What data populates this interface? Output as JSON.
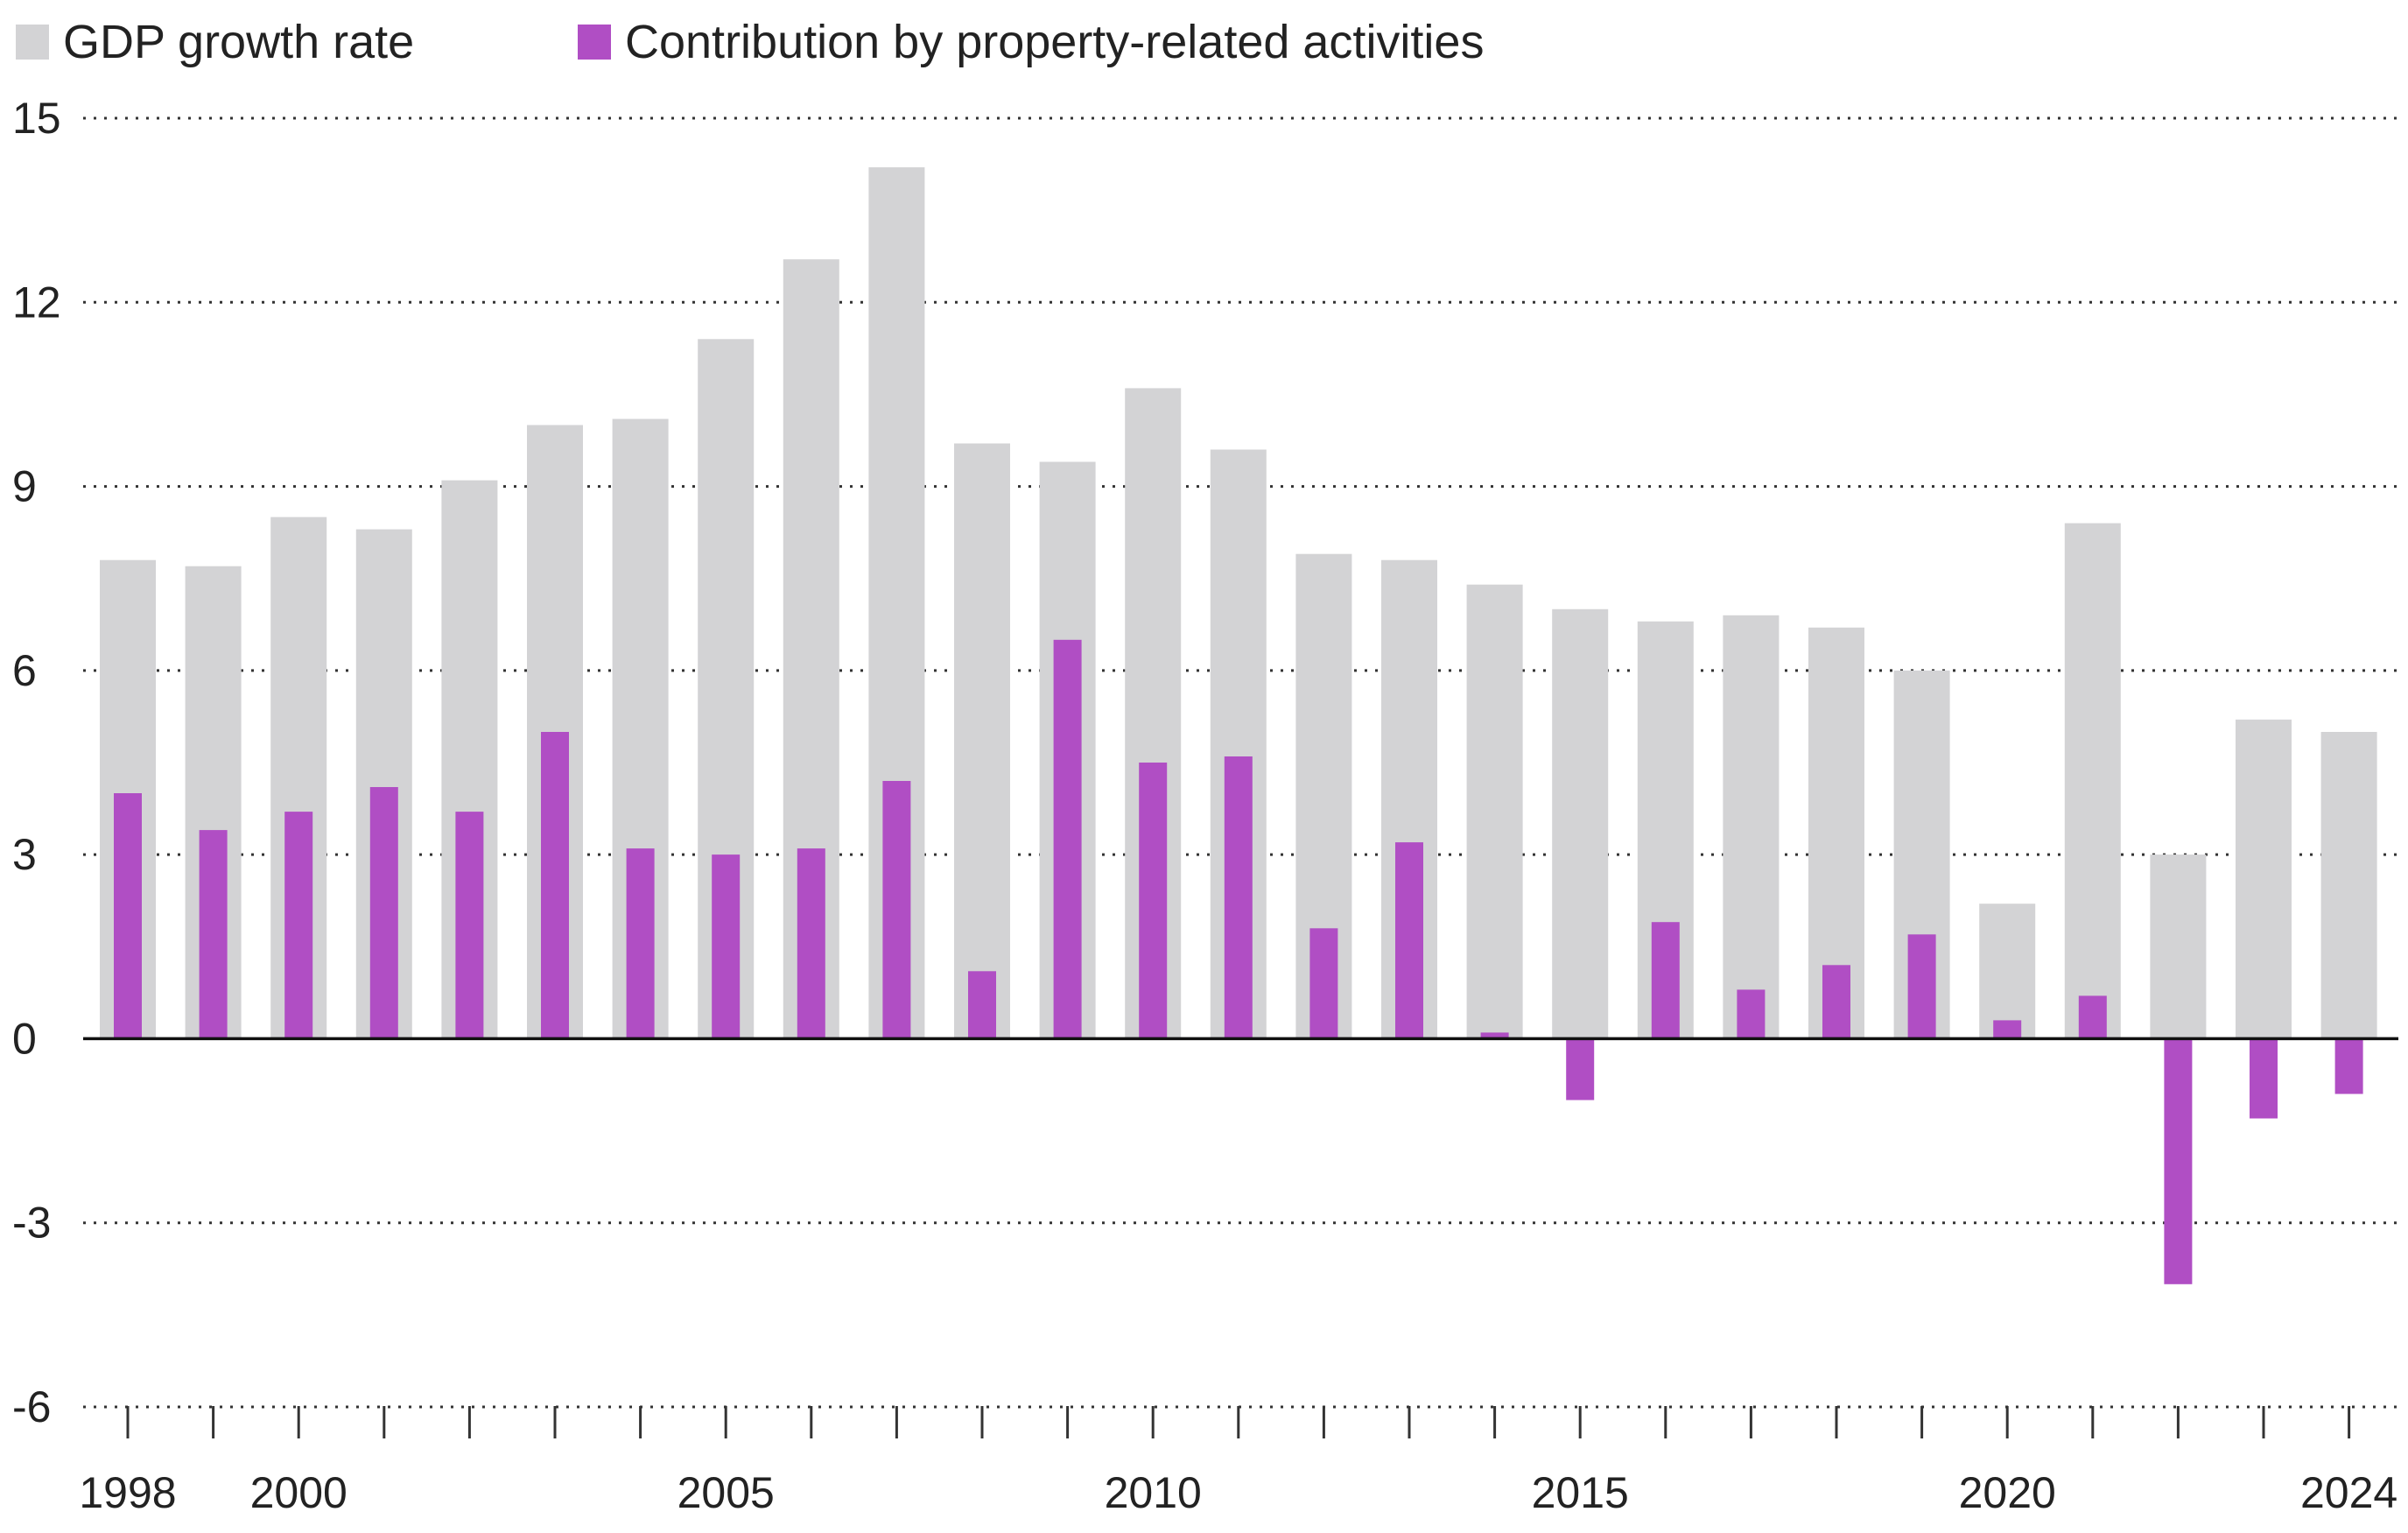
{
  "chart_data": {
    "type": "bar",
    "title": "",
    "xlabel": "",
    "ylabel": "",
    "ylim": [
      -6,
      15
    ],
    "yticks": [
      15,
      12,
      9,
      6,
      3,
      0,
      -3,
      -6
    ],
    "ytick_labels": [
      "15",
      "12",
      "9",
      "6",
      "3",
      "0",
      "-3",
      "-6"
    ],
    "xtick_labels": [
      "1998",
      "2000",
      "2005",
      "2010",
      "2015",
      "2020",
      "2024"
    ],
    "grid": "horizontal dotted",
    "legend_position": "top-left",
    "categories": [
      1998,
      1999,
      2000,
      2001,
      2002,
      2003,
      2004,
      2005,
      2006,
      2007,
      2008,
      2009,
      2010,
      2011,
      2012,
      2013,
      2014,
      2015,
      2016,
      2017,
      2018,
      2019,
      2020,
      2021,
      2022,
      2023,
      2024
    ],
    "series": [
      {
        "name": "GDP growth rate",
        "color": "#d3d3d5",
        "values": [
          7.8,
          7.7,
          8.5,
          8.3,
          9.1,
          10.0,
          10.1,
          11.4,
          12.7,
          14.2,
          9.7,
          9.4,
          10.6,
          9.6,
          7.9,
          7.8,
          7.4,
          7.0,
          6.8,
          6.9,
          6.7,
          6.0,
          2.2,
          8.4,
          3.0,
          5.2,
          5.0
        ]
      },
      {
        "name": "Contribution by property-related activities",
        "color": "#b04ec4",
        "values": [
          4.0,
          3.4,
          3.7,
          4.1,
          3.7,
          5.0,
          3.1,
          3.0,
          3.1,
          4.2,
          1.1,
          6.5,
          4.5,
          4.6,
          1.8,
          3.2,
          0.1,
          -1.0,
          1.9,
          0.8,
          1.2,
          1.7,
          0.3,
          0.7,
          -4.0,
          -1.3,
          -0.9
        ]
      }
    ]
  }
}
